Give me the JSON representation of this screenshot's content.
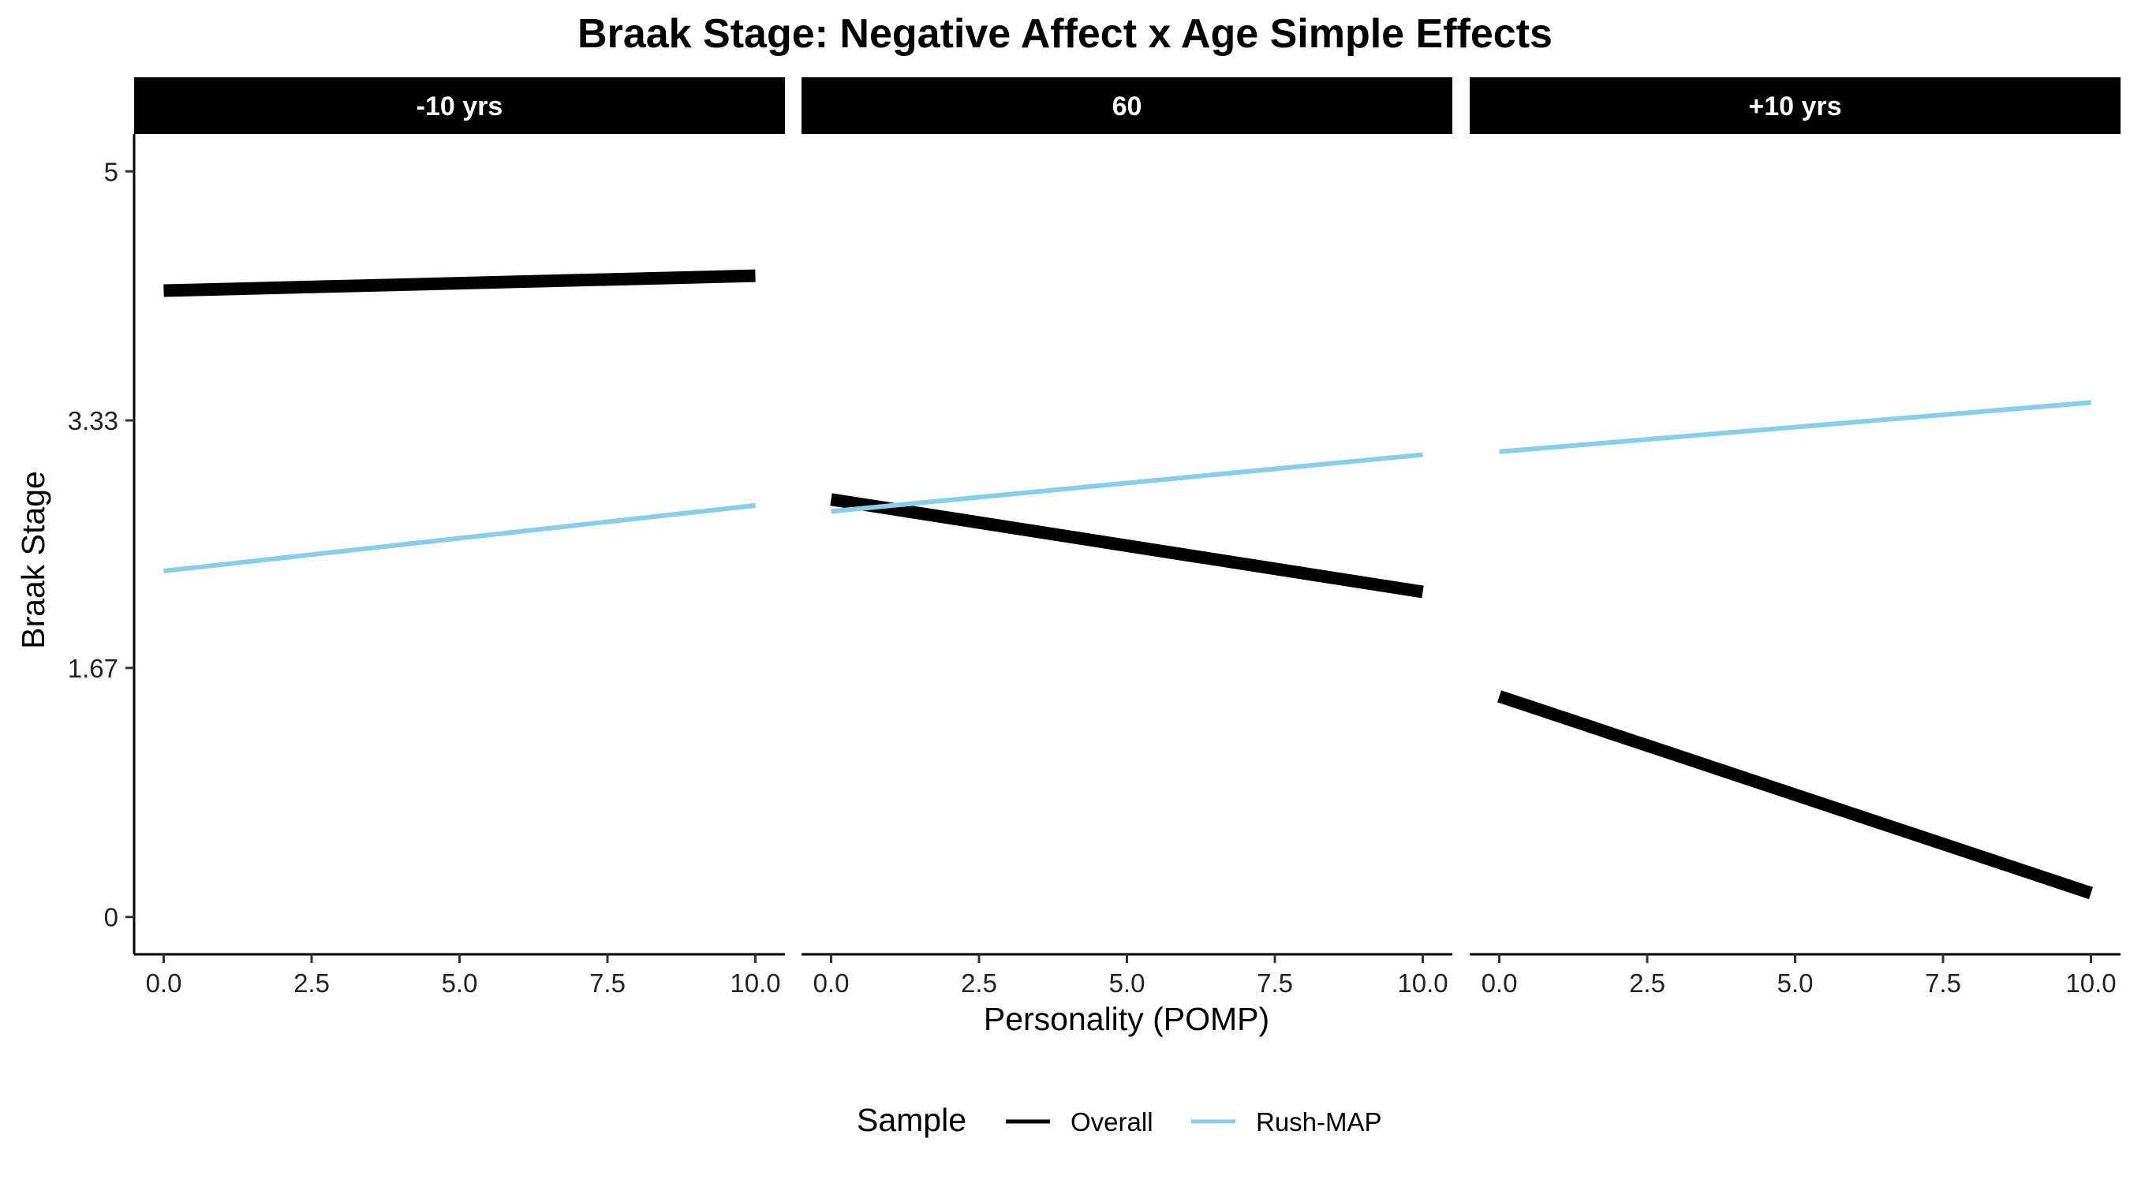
{
  "chart_data": {
    "type": "line",
    "title": "Braak Stage: Negative Affect x Age Simple Effects",
    "xlabel": "Personality (POMP)",
    "ylabel": "Braak Stage",
    "xlim": [
      -0.5,
      10.5
    ],
    "ylim": [
      -0.25,
      5.25
    ],
    "x_ticks": [
      "0.0",
      "2.5",
      "5.0",
      "7.5",
      "10.0"
    ],
    "x_tick_values": [
      0,
      2.5,
      5,
      7.5,
      10
    ],
    "y_ticks": [
      "0",
      "1.67",
      "3.33",
      "5"
    ],
    "y_tick_values": [
      0,
      1.67,
      3.33,
      5
    ],
    "grid": false,
    "legend": {
      "title": "Sample",
      "position": "bottom",
      "entries": [
        {
          "name": "Overall",
          "color": "#000000"
        },
        {
          "name": "Rush-MAP",
          "color": "#87CEEB"
        }
      ]
    },
    "panels": [
      {
        "label": "-10 yrs",
        "series": [
          {
            "name": "Overall",
            "color": "#000000",
            "x": [
              0,
              10
            ],
            "y": [
              4.2,
              4.3
            ]
          },
          {
            "name": "Rush-MAP",
            "color": "#87CEEB",
            "x": [
              0,
              10
            ],
            "y": [
              2.32,
              2.76
            ]
          }
        ]
      },
      {
        "label": "60",
        "series": [
          {
            "name": "Overall",
            "color": "#000000",
            "x": [
              0,
              10
            ],
            "y": [
              2.8,
              2.18
            ]
          },
          {
            "name": "Rush-MAP",
            "color": "#87CEEB",
            "x": [
              0,
              10
            ],
            "y": [
              2.72,
              3.1
            ]
          }
        ]
      },
      {
        "label": "+10 yrs",
        "series": [
          {
            "name": "Overall",
            "color": "#000000",
            "x": [
              0,
              10
            ],
            "y": [
              1.48,
              0.16
            ]
          },
          {
            "name": "Rush-MAP",
            "color": "#87CEEB",
            "x": [
              0,
              10
            ],
            "y": [
              3.12,
              3.45
            ]
          }
        ]
      }
    ]
  }
}
